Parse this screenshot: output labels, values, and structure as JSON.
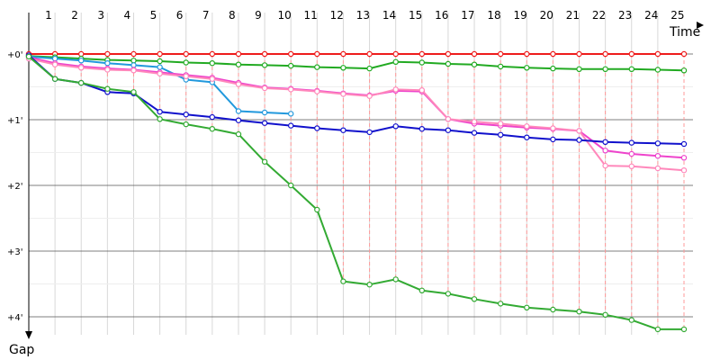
{
  "chart_data": {
    "type": "line",
    "x_axis_title": "Time",
    "y_axis_title": "Gap",
    "x_ticks": [
      "1",
      "2",
      "3",
      "4",
      "5",
      "6",
      "7",
      "8",
      "9",
      "10",
      "11",
      "12",
      "13",
      "14",
      "15",
      "16",
      "17",
      "18",
      "19",
      "20",
      "21",
      "22",
      "23",
      "24",
      "25"
    ],
    "y_ticks": [
      {
        "label": "+0'",
        "value": 0
      },
      {
        "label": "+1'",
        "value": 1
      },
      {
        "label": "+2'",
        "value": 2
      },
      {
        "label": "+3'",
        "value": 3
      },
      {
        "label": "+4'",
        "value": 4
      }
    ],
    "xlim": [
      1,
      25.95
    ],
    "ylim": [
      0,
      4.38
    ],
    "grid": true,
    "marker_style": "open-circle",
    "connector_color": "#ff9999",
    "series": [
      {
        "color": "#ee1c1c",
        "x": [
          1,
          2,
          3,
          4,
          5,
          6,
          7,
          8,
          9,
          10,
          11,
          12,
          13,
          14,
          15,
          16,
          17,
          18,
          19,
          20,
          21,
          22,
          23,
          24,
          25,
          26
        ],
        "y": [
          0,
          0,
          0,
          0,
          0,
          0,
          0,
          0,
          0,
          0,
          0,
          0,
          0,
          0,
          0,
          0,
          0,
          0,
          0,
          0,
          0,
          0,
          0,
          0,
          0,
          0
        ]
      },
      {
        "color": "#22aa22",
        "x": [
          1,
          2,
          3,
          4,
          5,
          6,
          7,
          8,
          9,
          10,
          11,
          12,
          13,
          14,
          15,
          16,
          17,
          18,
          19,
          20,
          21,
          22,
          23,
          24,
          25,
          26
        ],
        "y": [
          0.03,
          0.05,
          0.07,
          0.09,
          0.1,
          0.11,
          0.13,
          0.14,
          0.16,
          0.17,
          0.18,
          0.2,
          0.21,
          0.22,
          0.12,
          0.13,
          0.15,
          0.16,
          0.19,
          0.21,
          0.22,
          0.23,
          0.23,
          0.23,
          0.24,
          0.25
        ]
      },
      {
        "color": "#2299dd",
        "x": [
          1,
          2,
          3,
          4,
          5,
          6,
          7,
          8,
          9,
          10,
          11
        ],
        "y": [
          0.04,
          0.07,
          0.1,
          0.14,
          0.17,
          0.2,
          0.39,
          0.43,
          0.87,
          0.89,
          0.91
        ]
      },
      {
        "color": "#ee44cc",
        "x": [
          1,
          2,
          3,
          4,
          5,
          6,
          7,
          8,
          9,
          10,
          11,
          12,
          13,
          14,
          15,
          16,
          17,
          18,
          19,
          20,
          21,
          22,
          23,
          24,
          25,
          26
        ],
        "y": [
          0.05,
          0.14,
          0.19,
          0.22,
          0.24,
          0.28,
          0.32,
          0.36,
          0.44,
          0.51,
          0.53,
          0.56,
          0.6,
          0.63,
          0.56,
          0.57,
          0.99,
          1.06,
          1.09,
          1.12,
          1.14,
          1.17,
          1.47,
          1.52,
          1.55,
          1.58
        ]
      },
      {
        "color": "#ff88bb",
        "x": [
          1,
          2,
          3,
          4,
          5,
          6,
          7,
          8,
          9,
          10,
          11,
          12,
          13,
          14,
          15,
          16,
          17,
          18,
          19,
          20,
          21,
          22,
          23,
          24,
          25,
          26
        ],
        "y": [
          0.07,
          0.16,
          0.21,
          0.24,
          0.25,
          0.3,
          0.34,
          0.38,
          0.46,
          0.52,
          0.54,
          0.57,
          0.61,
          0.64,
          0.54,
          0.55,
          0.99,
          1.03,
          1.06,
          1.1,
          1.13,
          1.17,
          1.7,
          1.71,
          1.74,
          1.77
        ]
      },
      {
        "color": "#1111cc",
        "x": [
          1,
          2,
          3,
          4,
          5,
          6,
          7,
          8,
          9,
          10,
          11,
          12,
          13,
          14,
          15,
          16,
          17,
          18,
          19,
          20,
          21,
          22,
          23,
          24,
          25,
          26
        ],
        "y": [
          0.02,
          0.38,
          0.44,
          0.58,
          0.6,
          0.88,
          0.92,
          0.96,
          1.01,
          1.05,
          1.09,
          1.13,
          1.16,
          1.19,
          1.1,
          1.14,
          1.16,
          1.2,
          1.23,
          1.27,
          1.3,
          1.31,
          1.34,
          1.35,
          1.36,
          1.37
        ]
      },
      {
        "color": "#33aa33",
        "x": [
          1,
          2,
          3,
          4,
          5,
          6,
          7,
          8,
          9,
          10,
          11,
          12,
          13,
          14,
          15,
          16,
          17,
          18,
          19,
          20,
          21,
          22,
          23,
          24,
          25,
          26
        ],
        "y": [
          0.04,
          0.38,
          0.44,
          0.53,
          0.58,
          0.99,
          1.07,
          1.14,
          1.22,
          1.64,
          2.0,
          2.37,
          3.46,
          3.51,
          3.43,
          3.6,
          3.65,
          3.73,
          3.8,
          3.86,
          3.89,
          3.92,
          3.97,
          4.05,
          4.19,
          4.19
        ]
      }
    ]
  }
}
